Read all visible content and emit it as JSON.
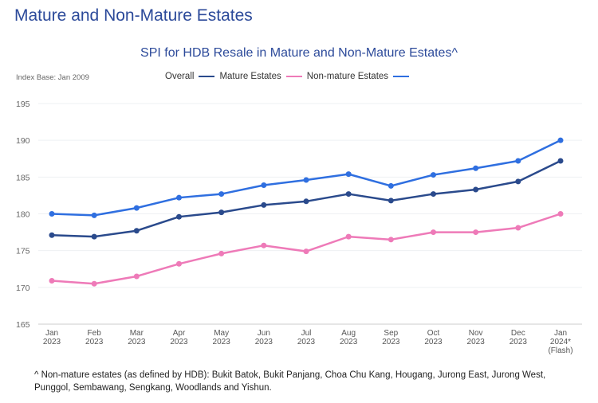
{
  "heading": "Mature and Non-Mature Estates",
  "chart_data": {
    "type": "line",
    "title": "SPI for HDB Resale in Mature and Non-Mature Estates^",
    "subtitle": "Index Base: Jan 2009",
    "categories": [
      [
        "Jan",
        "2023"
      ],
      [
        "Feb",
        "2023"
      ],
      [
        "Mar",
        "2023"
      ],
      [
        "Apr",
        "2023"
      ],
      [
        "May",
        "2023"
      ],
      [
        "Jun",
        "2023"
      ],
      [
        "Jul",
        "2023"
      ],
      [
        "Aug",
        "2023"
      ],
      [
        "Sep",
        "2023"
      ],
      [
        "Oct",
        "2023"
      ],
      [
        "Nov",
        "2023"
      ],
      [
        "Dec",
        "2023"
      ],
      [
        "Jan",
        "2024*",
        "(Flash)"
      ]
    ],
    "ylim": [
      165,
      195
    ],
    "yticks": [
      165,
      170,
      175,
      180,
      185,
      190,
      195
    ],
    "grid": true,
    "legend_placement": "top",
    "series": [
      {
        "name": "Overall",
        "color": "#2a4a8c",
        "values": [
          177.1,
          176.9,
          177.7,
          179.6,
          180.2,
          181.2,
          181.7,
          182.7,
          181.8,
          182.7,
          183.3,
          184.4,
          187.2
        ]
      },
      {
        "name": "Mature Estates",
        "color": "#ee7ab8",
        "values": [
          170.9,
          170.5,
          171.5,
          173.2,
          174.6,
          175.7,
          174.9,
          176.9,
          176.5,
          177.5,
          177.5,
          178.1,
          180.0
        ]
      },
      {
        "name": "Non-mature Estates",
        "color": "#2f6fe0",
        "values": [
          180.0,
          179.8,
          180.8,
          182.2,
          182.7,
          183.9,
          184.6,
          185.4,
          183.8,
          185.3,
          186.2,
          187.2,
          190.0
        ]
      }
    ]
  },
  "footnote": "^ Non-mature estates (as defined by HDB): Bukit Batok, Bukit Panjang, Choa Chu Kang, Hougang, Jurong East, Jurong West, Punggol, Sembawang, Sengkang, Woodlands and Yishun."
}
